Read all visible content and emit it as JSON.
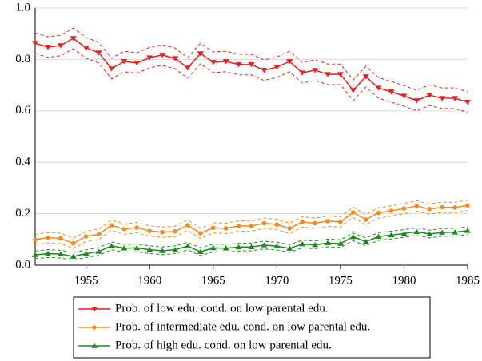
{
  "chart_data": {
    "type": "line",
    "x": [
      1951,
      1952,
      1953,
      1954,
      1955,
      1956,
      1957,
      1958,
      1959,
      1960,
      1961,
      1962,
      1963,
      1964,
      1965,
      1966,
      1967,
      1968,
      1969,
      1970,
      1971,
      1972,
      1973,
      1974,
      1975,
      1976,
      1977,
      1978,
      1979,
      1980,
      1981,
      1982,
      1983,
      1984,
      1985
    ],
    "xlim": [
      1951,
      1985
    ],
    "xticks": [
      1955,
      1960,
      1965,
      1970,
      1975,
      1980,
      1985
    ],
    "ylim": [
      0,
      1
    ],
    "yticks": [
      {
        "value": 0,
        "label": "0.0"
      },
      0.2,
      0.4,
      0.6,
      0.8,
      {
        "value": 1,
        "label": "1.0"
      }
    ],
    "grid": true,
    "legend": "bottom",
    "series": [
      {
        "name": "Prob. of low edu. cond. on low parental edu.",
        "color": "#e8201e",
        "marker": "triangle-down",
        "values": [
          0.863,
          0.848,
          0.854,
          0.882,
          0.845,
          0.826,
          0.764,
          0.792,
          0.786,
          0.807,
          0.817,
          0.804,
          0.767,
          0.823,
          0.789,
          0.792,
          0.78,
          0.78,
          0.758,
          0.77,
          0.792,
          0.748,
          0.758,
          0.742,
          0.742,
          0.68,
          0.733,
          0.689,
          0.674,
          0.658,
          0.64,
          0.661,
          0.649,
          0.649,
          0.634
        ],
        "upper": [
          0.903,
          0.888,
          0.894,
          0.922,
          0.885,
          0.866,
          0.804,
          0.832,
          0.826,
          0.847,
          0.857,
          0.844,
          0.807,
          0.863,
          0.829,
          0.832,
          0.82,
          0.82,
          0.798,
          0.81,
          0.832,
          0.788,
          0.798,
          0.782,
          0.782,
          0.72,
          0.773,
          0.729,
          0.714,
          0.698,
          0.68,
          0.701,
          0.689,
          0.689,
          0.674
        ],
        "lower": [
          0.823,
          0.808,
          0.814,
          0.842,
          0.805,
          0.786,
          0.724,
          0.752,
          0.746,
          0.767,
          0.777,
          0.764,
          0.727,
          0.783,
          0.749,
          0.752,
          0.74,
          0.74,
          0.718,
          0.73,
          0.752,
          0.708,
          0.718,
          0.702,
          0.702,
          0.64,
          0.693,
          0.649,
          0.634,
          0.618,
          0.6,
          0.621,
          0.609,
          0.609,
          0.594
        ]
      },
      {
        "name": "Prob. of intermediate edu. cond. on low parental edu.",
        "color": "#f28a1c",
        "marker": "circle",
        "values": [
          0.099,
          0.107,
          0.104,
          0.085,
          0.112,
          0.12,
          0.155,
          0.14,
          0.146,
          0.133,
          0.128,
          0.131,
          0.155,
          0.124,
          0.145,
          0.143,
          0.152,
          0.152,
          0.163,
          0.158,
          0.143,
          0.168,
          0.163,
          0.171,
          0.168,
          0.205,
          0.177,
          0.203,
          0.211,
          0.22,
          0.23,
          0.218,
          0.225,
          0.224,
          0.232
        ],
        "upper": [
          0.119,
          0.127,
          0.124,
          0.105,
          0.132,
          0.14,
          0.175,
          0.16,
          0.166,
          0.153,
          0.148,
          0.151,
          0.175,
          0.144,
          0.165,
          0.163,
          0.172,
          0.172,
          0.183,
          0.178,
          0.163,
          0.188,
          0.183,
          0.191,
          0.188,
          0.225,
          0.197,
          0.223,
          0.231,
          0.24,
          0.25,
          0.238,
          0.245,
          0.244,
          0.252
        ],
        "lower": [
          0.079,
          0.087,
          0.084,
          0.065,
          0.092,
          0.1,
          0.135,
          0.12,
          0.126,
          0.113,
          0.108,
          0.111,
          0.135,
          0.104,
          0.125,
          0.123,
          0.132,
          0.132,
          0.143,
          0.138,
          0.123,
          0.148,
          0.143,
          0.151,
          0.148,
          0.185,
          0.157,
          0.183,
          0.191,
          0.2,
          0.21,
          0.198,
          0.205,
          0.204,
          0.212
        ]
      },
      {
        "name": "Prob. of high edu. cond. on low parental edu.",
        "color": "#1e8a1e",
        "marker": "triangle-up",
        "values": [
          0.04,
          0.045,
          0.043,
          0.034,
          0.045,
          0.053,
          0.075,
          0.066,
          0.067,
          0.06,
          0.056,
          0.06,
          0.074,
          0.052,
          0.067,
          0.066,
          0.07,
          0.071,
          0.078,
          0.074,
          0.065,
          0.082,
          0.079,
          0.086,
          0.084,
          0.11,
          0.091,
          0.111,
          0.117,
          0.123,
          0.13,
          0.121,
          0.127,
          0.128,
          0.134
        ],
        "upper": [
          0.055,
          0.06,
          0.058,
          0.049,
          0.06,
          0.068,
          0.09,
          0.081,
          0.082,
          0.075,
          0.071,
          0.075,
          0.089,
          0.067,
          0.082,
          0.081,
          0.085,
          0.086,
          0.093,
          0.089,
          0.08,
          0.097,
          0.094,
          0.101,
          0.099,
          0.125,
          0.106,
          0.126,
          0.132,
          0.138,
          0.145,
          0.136,
          0.142,
          0.143,
          0.149
        ],
        "lower": [
          0.025,
          0.03,
          0.028,
          0.019,
          0.03,
          0.038,
          0.06,
          0.051,
          0.052,
          0.045,
          0.041,
          0.045,
          0.059,
          0.037,
          0.052,
          0.051,
          0.055,
          0.056,
          0.063,
          0.059,
          0.05,
          0.067,
          0.064,
          0.071,
          0.069,
          0.095,
          0.076,
          0.096,
          0.102,
          0.108,
          0.115,
          0.106,
          0.112,
          0.113,
          0.119
        ]
      }
    ]
  }
}
